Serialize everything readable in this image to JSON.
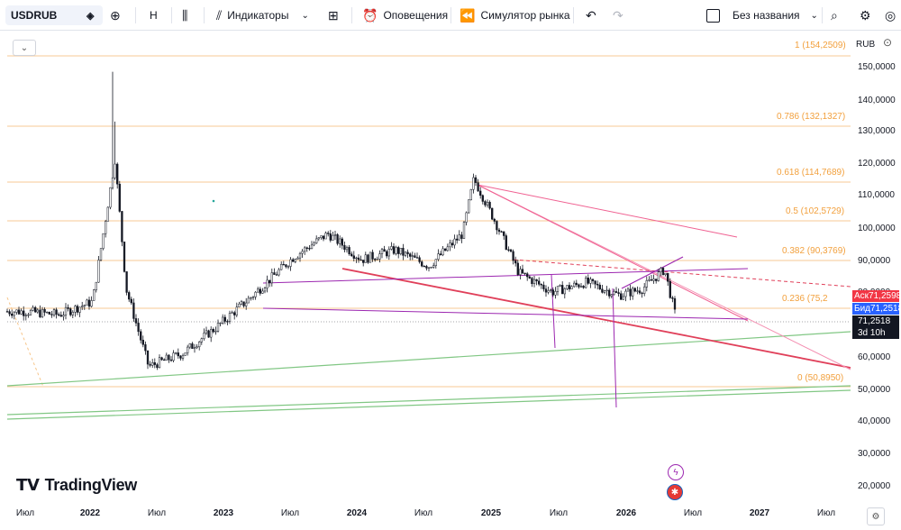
{
  "toolbar": {
    "symbol": "USDRUB",
    "interval": "Н",
    "indicators_label": "Индикаторы",
    "alerts_label": "Оповещения",
    "replay_label": "Симулятор рынка",
    "layout_name": "Без названия"
  },
  "price_scale": {
    "currency": "RUB",
    "ticks": [
      "150,0000",
      "140,0000",
      "130,0000",
      "120,0000",
      "110,0000",
      "100,0000",
      "90,0000",
      "80,0000",
      "70,0000",
      "60,0000",
      "50,0000",
      "40,0000",
      "30,0000",
      "20,0000"
    ],
    "ask_label": "Аск",
    "ask_value": "71,2598",
    "bid_label": "Бид",
    "bid_value": "71,2518",
    "last_value": "71,2518",
    "countdown": "3d 10h"
  },
  "fib_levels": [
    {
      "text": "1 (154,2509)"
    },
    {
      "text": "0.786 (132,1327)"
    },
    {
      "text": "0.618 (114,7689)"
    },
    {
      "text": "0.5 (102,5729)"
    },
    {
      "text": "0.382 (90,3769)"
    },
    {
      "text": "0.236 (75,2"
    },
    {
      "text": "0 (50,8950)"
    }
  ],
  "time_axis": [
    "Июл",
    "2022",
    "Июл",
    "2023",
    "Июл",
    "2024",
    "Июл",
    "2025",
    "Июл",
    "2026",
    "Июл",
    "2027",
    "Июл"
  ],
  "branding": {
    "name": "TradingView"
  },
  "colors": {
    "fib": "#f2a03d",
    "ask": "#f23645",
    "bid": "#2962ff",
    "last": "#131722",
    "trend_red": "#e0405a",
    "trend_pink": "#f48fb1",
    "trend_purple": "#9c27b0",
    "trend_green": "#81c784"
  },
  "chart_data": {
    "type": "candlestick",
    "series": [
      {
        "name": "USDRUB",
        "x": [
          "2021-07",
          "2021-10",
          "2022-01",
          "2022-03",
          "2022-04",
          "2022-06",
          "2022-09",
          "2022-12",
          "2023-03",
          "2023-07",
          "2023-10",
          "2024-01",
          "2024-04",
          "2024-07",
          "2024-10",
          "2024-11",
          "2025-01",
          "2025-03",
          "2025-06",
          "2025-09",
          "2025-12",
          "2026-02",
          "2026-04",
          "2026-05"
        ],
        "y": [
          73,
          72,
          76,
          120,
          80,
          56,
          60,
          68,
          77,
          90,
          97,
          89,
          92,
          87,
          97,
          114,
          100,
          85,
          79,
          82,
          78,
          80,
          86,
          71.25
        ]
      }
    ],
    "ylim": [
      15,
      158
    ],
    "grid": false
  }
}
